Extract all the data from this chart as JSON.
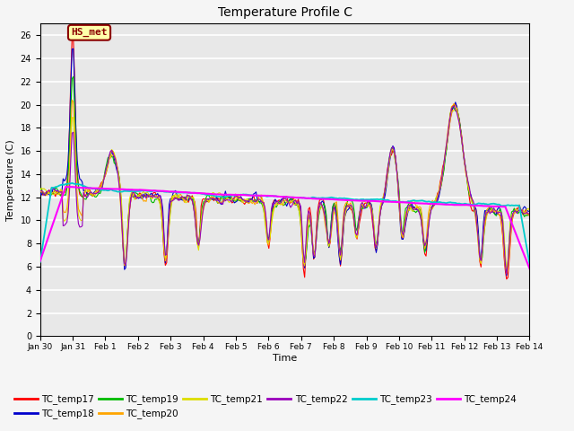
{
  "title": "Temperature Profile C",
  "xlabel": "Time",
  "ylabel": "Temperature (C)",
  "ylim": [
    0,
    27
  ],
  "yticks": [
    0,
    2,
    4,
    6,
    8,
    10,
    12,
    14,
    16,
    18,
    20,
    22,
    24,
    26
  ],
  "series_colors": {
    "TC_temp17": "#FF0000",
    "TC_temp18": "#0000CC",
    "TC_temp19": "#00BB00",
    "TC_temp20": "#FFA500",
    "TC_temp21": "#DDDD00",
    "TC_temp22": "#9900BB",
    "TC_temp23": "#00CCCC",
    "TC_temp24": "#FF00FF"
  },
  "annotation_text": "HS_met",
  "annotation_fg": "#8B0000",
  "annotation_bg": "#FFFFAA",
  "background_color": "#E8E8E8",
  "grid_color": "#FFFFFF",
  "tick_labels": [
    "Jan 30",
    "Jan 31",
    "Feb 1",
    "Feb 2",
    "Feb 3",
    "Feb 4",
    "Feb 5",
    "Feb 6",
    "Feb 7",
    "Feb 8",
    "Feb 9",
    "Feb 10",
    "Feb 11",
    "Feb 12",
    "Feb 13",
    "Feb 14"
  ],
  "figsize": [
    6.4,
    4.8
  ],
  "dpi": 100
}
